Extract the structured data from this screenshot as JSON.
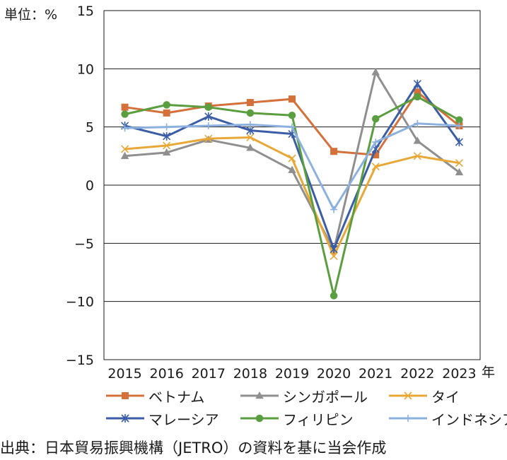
{
  "chart_data": {
    "type": "line",
    "unit_label": "単位：%",
    "x_suffix": "年",
    "x": [
      "2015",
      "2016",
      "2017",
      "2018",
      "2019",
      "2020",
      "2021",
      "2022",
      "2023"
    ],
    "ylim": [
      -15,
      15
    ],
    "yticks": [
      "15",
      "10",
      "5",
      "0",
      "−5",
      "−10",
      "−15"
    ],
    "grid": "horizontal",
    "legend_position": "bottom",
    "series": [
      {
        "name": "ベトナム",
        "color": "#d4703a",
        "marker": "square",
        "values": [
          6.7,
          6.2,
          6.8,
          7.1,
          7.4,
          2.9,
          2.6,
          8.0,
          5.1
        ]
      },
      {
        "name": "シンガポール",
        "color": "#8f8f8f",
        "marker": "triangle",
        "values": [
          2.5,
          2.8,
          3.9,
          3.2,
          1.3,
          -5.6,
          9.7,
          3.8,
          1.1
        ]
      },
      {
        "name": "タイ",
        "color": "#e8a838",
        "marker": "x",
        "values": [
          3.1,
          3.4,
          4.0,
          4.1,
          2.3,
          -6.1,
          1.6,
          2.5,
          1.9
        ]
      },
      {
        "name": "マレーシア",
        "color": "#3a5da6",
        "marker": "star",
        "values": [
          5.1,
          4.2,
          5.9,
          4.7,
          4.4,
          -5.5,
          3.1,
          8.7,
          3.7
        ]
      },
      {
        "name": "フィリピン",
        "color": "#5a9e40",
        "marker": "circle",
        "values": [
          6.1,
          6.9,
          6.7,
          6.2,
          6.0,
          -9.5,
          5.7,
          7.6,
          5.6
        ]
      },
      {
        "name": "インドネシア",
        "color": "#8db1de",
        "marker": "plus",
        "values": [
          4.9,
          5.0,
          5.1,
          5.2,
          5.0,
          -2.1,
          3.7,
          5.3,
          5.1
        ]
      }
    ]
  },
  "source": "出典：日本貿易振興機構（JETRO）の資料を基に当会作成"
}
